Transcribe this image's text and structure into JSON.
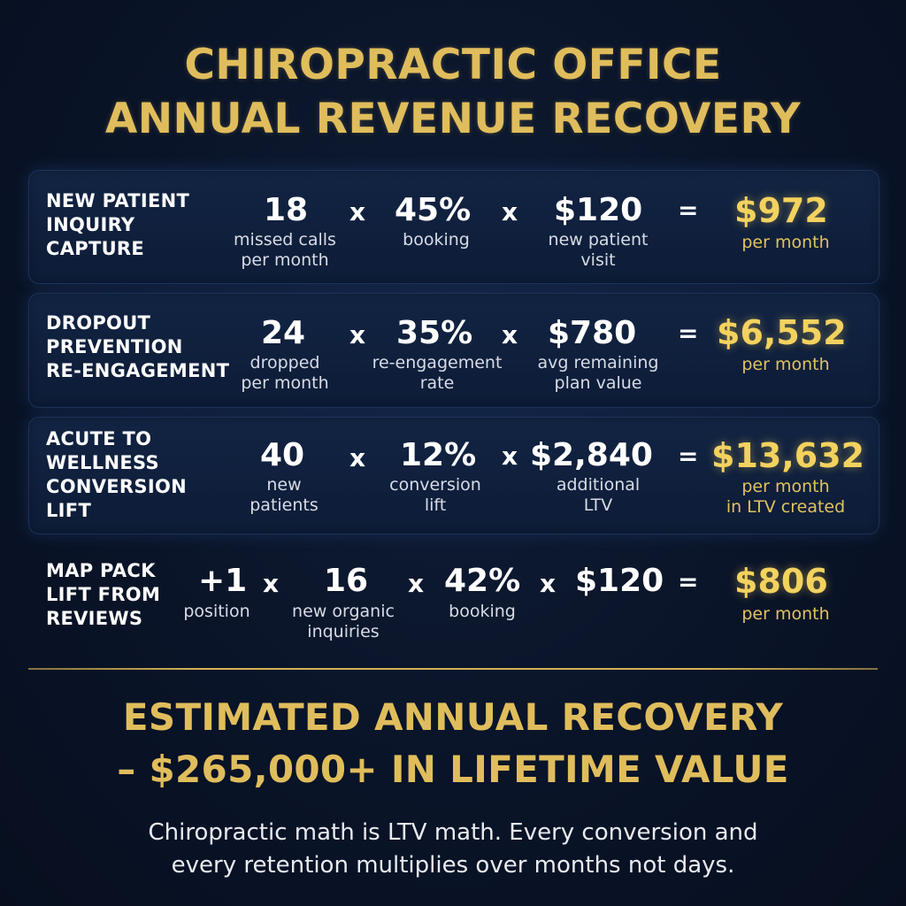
{
  "title": {
    "line1": "CHIROPRACTIC OFFICE",
    "line2": "ANNUAL REVENUE RECOVERY"
  },
  "rows": [
    {
      "label": "NEW PATIENT\nINQUIRY\nCAPTURE",
      "factors": [
        {
          "value": "18",
          "desc": "missed calls\nper month"
        },
        {
          "value": "45%",
          "desc": "booking"
        },
        {
          "value": "$120",
          "desc": "new patient\nvisit"
        }
      ],
      "operators": [
        "x",
        "x",
        "="
      ],
      "result": "$972",
      "result_desc": "per month"
    },
    {
      "label": "DROPOUT\nPREVENTION\nRE-ENGAGEMENT",
      "factors": [
        {
          "value": "24",
          "desc": "dropped\nper month"
        },
        {
          "value": "35%",
          "desc": "re-engagement\nrate"
        },
        {
          "value": "$780",
          "desc": "avg remaining\nplan value"
        }
      ],
      "operators": [
        "x",
        "x",
        "="
      ],
      "result": "$6,552",
      "result_desc": "per month"
    },
    {
      "label": "ACUTE TO\nWELLNESS\nCONVERSION\nLIFT",
      "factors": [
        {
          "value": "40",
          "desc": "new\npatients"
        },
        {
          "value": "12%",
          "desc": "conversion\nlift"
        },
        {
          "value": "$2,840",
          "desc": "additional\nLTV"
        }
      ],
      "operators": [
        "x",
        "x",
        "="
      ],
      "result": "$13,632",
      "result_desc": "per month\nin LTV created"
    },
    {
      "label": "MAP PACK\nLIFT FROM\nREVIEWS",
      "factors": [
        {
          "value": "+1",
          "desc": "position"
        },
        {
          "value": "16",
          "desc": "new organic\ninquiries"
        },
        {
          "value": "42%",
          "desc": "booking"
        },
        {
          "value": "$120",
          "desc": ""
        }
      ],
      "operators": [
        "x",
        "x",
        "x",
        "="
      ],
      "result": "$806",
      "result_desc": "per month"
    }
  ],
  "footer": {
    "line1": "ESTIMATED ANNUAL RECOVERY",
    "line2": "– $265,000+ IN LIFETIME VALUE"
  },
  "tagline": {
    "line1": "Chiropractic math is LTV math. Every conversion and",
    "line2": "every retention multiplies over months not days."
  },
  "colors": {
    "background": "#0a1428",
    "gold_title": "#e0bd5c",
    "gold_result": "#f3d25e",
    "panel": "#122443",
    "text": "#ffffff"
  }
}
